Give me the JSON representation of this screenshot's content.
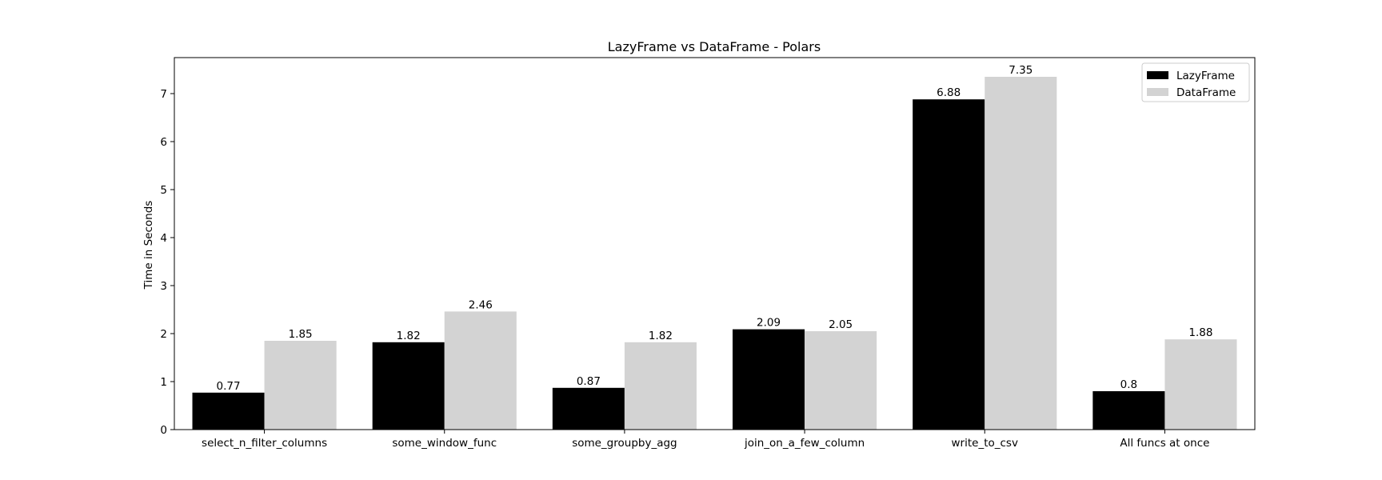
{
  "chart_data": {
    "type": "bar",
    "title": "LazyFrame vs DataFrame - Polars",
    "xlabel": "",
    "ylabel": "Time in Seconds",
    "categories": [
      "select_n_filter_columns",
      "some_window_func",
      "some_groupby_agg",
      "join_on_a_few_column",
      "write_to_csv",
      "All funcs at once"
    ],
    "series": [
      {
        "name": "LazyFrame",
        "color": "#000000",
        "values": [
          0.77,
          1.82,
          0.87,
          2.09,
          6.88,
          0.8
        ]
      },
      {
        "name": "DataFrame",
        "color": "#d3d3d3",
        "values": [
          1.85,
          2.46,
          1.82,
          2.05,
          7.35,
          1.88
        ]
      }
    ],
    "ylim": [
      0,
      7.75
    ],
    "yticks": [
      0,
      1,
      2,
      3,
      4,
      5,
      6,
      7
    ],
    "grid": false,
    "legend_position": "top-right"
  }
}
